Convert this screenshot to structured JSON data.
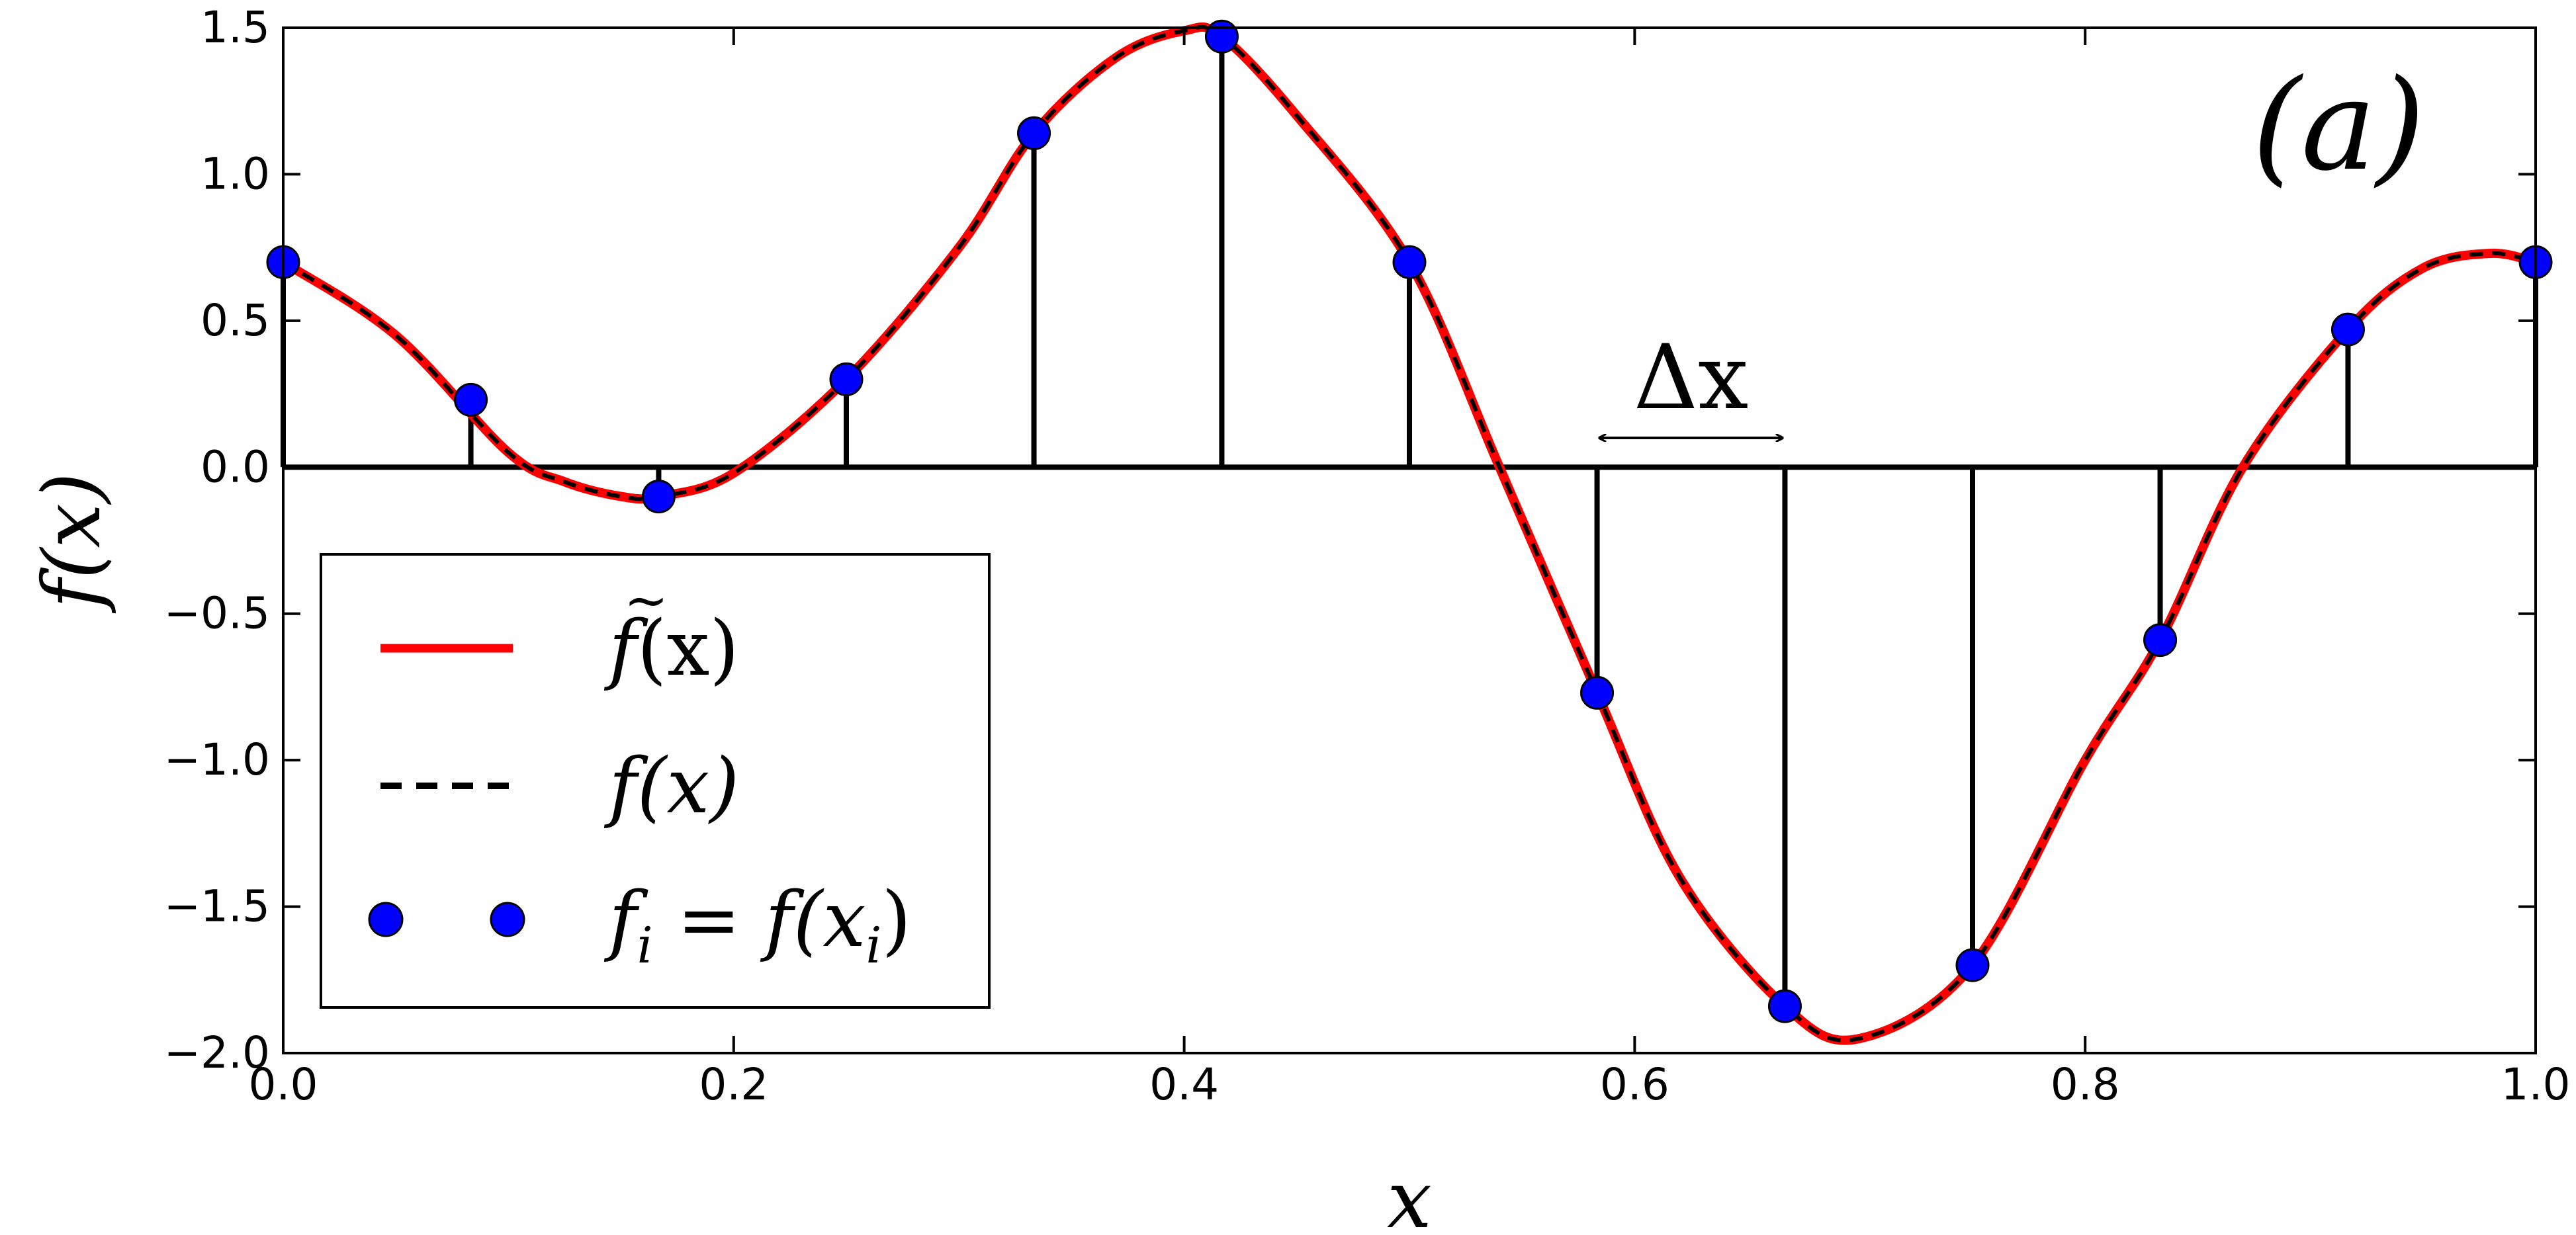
{
  "chart_data": {
    "type": "line",
    "panel_label": "(a)",
    "xlabel": "x",
    "ylabel": "f(x)",
    "xlim": [
      0.0,
      1.0
    ],
    "ylim": [
      -2.0,
      1.5
    ],
    "xticks": [
      0.0,
      0.2,
      0.4,
      0.6,
      0.8,
      1.0
    ],
    "xtick_labels": [
      "0.0",
      "0.2",
      "0.4",
      "0.6",
      "0.8",
      "1.0"
    ],
    "yticks": [
      1.5,
      1.0,
      0.5,
      0.0,
      -0.5,
      -1.0,
      -1.5,
      -2.0
    ],
    "ytick_labels": [
      "1.5",
      "1.0",
      "0.5",
      "0.0",
      "−0.5",
      "−1.0",
      "−1.5",
      "−2.0"
    ],
    "grid": false,
    "legend_position": "lower-left",
    "series": [
      {
        "name": "f̃(x)",
        "style": "solid",
        "color": "#ff0000",
        "x": [
          0.0,
          0.05,
          0.1,
          0.125,
          0.15,
          0.1667,
          0.2,
          0.25,
          0.3,
          0.3333,
          0.37,
          0.4,
          0.4167,
          0.45,
          0.5,
          0.54,
          0.5833,
          0.62,
          0.6667,
          0.7,
          0.75,
          0.8,
          0.8333,
          0.87,
          0.9167,
          0.95,
          0.98,
          1.0
        ],
        "y": [
          0.7,
          0.45,
          0.05,
          -0.05,
          -0.1,
          -0.1,
          -0.02,
          0.3,
          0.75,
          1.14,
          1.4,
          1.49,
          1.47,
          1.2,
          0.7,
          0.0,
          -0.77,
          -1.4,
          -1.84,
          -1.95,
          -1.7,
          -1.0,
          -0.59,
          0.0,
          0.47,
          0.68,
          0.73,
          0.7
        ]
      },
      {
        "name": "f(x)",
        "style": "dashed",
        "color": "#000000",
        "x": [
          0.0,
          0.05,
          0.1,
          0.125,
          0.15,
          0.1667,
          0.2,
          0.25,
          0.3,
          0.3333,
          0.37,
          0.4,
          0.4167,
          0.45,
          0.5,
          0.54,
          0.5833,
          0.62,
          0.6667,
          0.7,
          0.75,
          0.8,
          0.8333,
          0.87,
          0.9167,
          0.95,
          0.98,
          1.0
        ],
        "y": [
          0.7,
          0.45,
          0.05,
          -0.05,
          -0.1,
          -0.1,
          -0.02,
          0.3,
          0.75,
          1.14,
          1.4,
          1.49,
          1.47,
          1.2,
          0.7,
          0.0,
          -0.77,
          -1.4,
          -1.84,
          -1.95,
          -1.7,
          -1.0,
          -0.59,
          0.0,
          0.47,
          0.68,
          0.73,
          0.7
        ]
      },
      {
        "name": "f_i = f(x_i)",
        "style": "markers-with-stems",
        "color": "#0000ff",
        "x": [
          0.0,
          0.0833,
          0.1667,
          0.25,
          0.3333,
          0.4167,
          0.5,
          0.5833,
          0.6667,
          0.75,
          0.8333,
          0.9167,
          1.0
        ],
        "y": [
          0.7,
          0.23,
          -0.1,
          0.3,
          1.14,
          1.47,
          0.7,
          -0.77,
          -1.84,
          -1.7,
          -0.59,
          0.47,
          0.7
        ]
      }
    ],
    "annotation": {
      "text": "Δx",
      "x_start": 0.5833,
      "x_end": 0.6667,
      "y": 0.1
    },
    "legend": {
      "entries": [
        {
          "main": "f",
          "accent": "~",
          "tail": "(x)"
        },
        {
          "main": "f(x)"
        },
        {
          "main": "f",
          "sub": "i",
          "mid": " = f(x",
          "sub2": "i",
          "tail": ")"
        }
      ]
    }
  }
}
